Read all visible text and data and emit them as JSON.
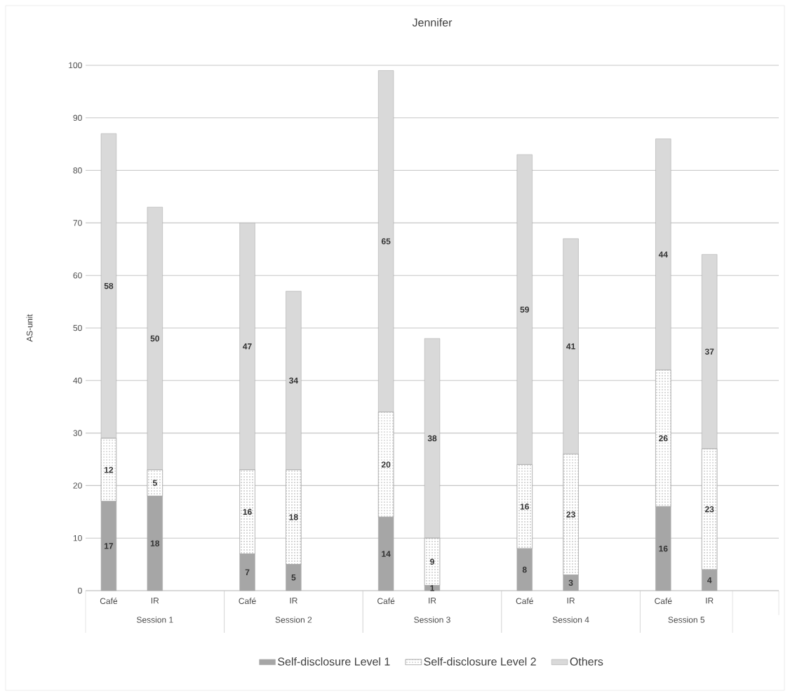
{
  "chart_data": {
    "type": "bar",
    "stacked": true,
    "title": "Jennifer",
    "ylabel": "AS-unit",
    "categories": [
      "Café",
      "IR",
      null,
      "Café",
      "IR",
      null,
      "Café",
      "IR",
      null,
      "Café",
      "IR",
      null,
      "Café",
      "IR",
      null
    ],
    "series": [
      {
        "name": "Self-disclosure Level 1",
        "color": "#a6a6a6",
        "values": [
          17,
          18,
          null,
          7,
          5,
          null,
          14,
          1,
          null,
          8,
          3,
          null,
          16,
          4,
          null
        ]
      },
      {
        "name": "Self-disclosure Level 2",
        "color": "#ffffff",
        "values": [
          12,
          5,
          null,
          16,
          18,
          null,
          20,
          9,
          null,
          16,
          23,
          null,
          26,
          23,
          null
        ]
      },
      {
        "name": "Others",
        "color": "#d9d9d9",
        "values": [
          58,
          50,
          null,
          47,
          34,
          null,
          65,
          38,
          null,
          59,
          41,
          null,
          44,
          37,
          null
        ]
      }
    ],
    "annotations": [
      "Session 1",
      "Session 2",
      "Session 3",
      "Session 4",
      "Session 5"
    ],
    "ylim": [
      0,
      100
    ],
    "yticks": [
      0,
      10,
      20,
      30,
      40,
      50,
      60,
      70,
      80,
      90,
      100
    ],
    "grid": "y",
    "legend": "bottom",
    "data_labels": true
  }
}
